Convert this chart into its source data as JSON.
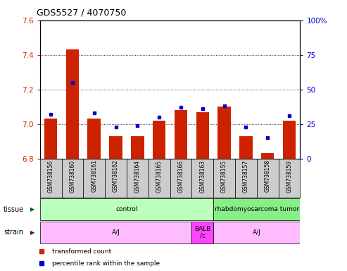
{
  "title": "GDS5527 / 4070750",
  "samples": [
    "GSM738156",
    "GSM738160",
    "GSM738161",
    "GSM738162",
    "GSM738164",
    "GSM738165",
    "GSM738166",
    "GSM738163",
    "GSM738155",
    "GSM738157",
    "GSM738158",
    "GSM738159"
  ],
  "bar_values": [
    7.03,
    7.43,
    7.03,
    6.93,
    6.93,
    7.02,
    7.08,
    7.07,
    7.1,
    6.93,
    6.83,
    7.02
  ],
  "dot_values": [
    32,
    55,
    33,
    23,
    24,
    30,
    37,
    36,
    38,
    23,
    15,
    31
  ],
  "ylim_left": [
    6.8,
    7.6
  ],
  "ylim_right": [
    0,
    100
  ],
  "yticks_left": [
    6.8,
    7.0,
    7.2,
    7.4,
    7.6
  ],
  "yticks_right": [
    0,
    25,
    50,
    75,
    100
  ],
  "bar_color": "#cc2200",
  "dot_color": "#0000cc",
  "tissue_groups": [
    {
      "label": "control",
      "start": 0,
      "end": 8,
      "color": "#bbffbb"
    },
    {
      "label": "rhabdomyosarcoma tumor",
      "start": 8,
      "end": 12,
      "color": "#88ee88"
    }
  ],
  "strain_groups": [
    {
      "label": "A/J",
      "start": 0,
      "end": 7,
      "color": "#ffbbff"
    },
    {
      "label": "BALB\n/c",
      "start": 7,
      "end": 8,
      "color": "#ff44ff"
    },
    {
      "label": "A/J",
      "start": 8,
      "end": 12,
      "color": "#ffbbff"
    }
  ],
  "legend_items": [
    {
      "color": "#cc2200",
      "label": "transformed count"
    },
    {
      "color": "#0000cc",
      "label": "percentile rank within the sample"
    }
  ],
  "left_axis_color": "#cc2200",
  "right_axis_color": "#0000cc",
  "tick_bg_color": "#cccccc"
}
